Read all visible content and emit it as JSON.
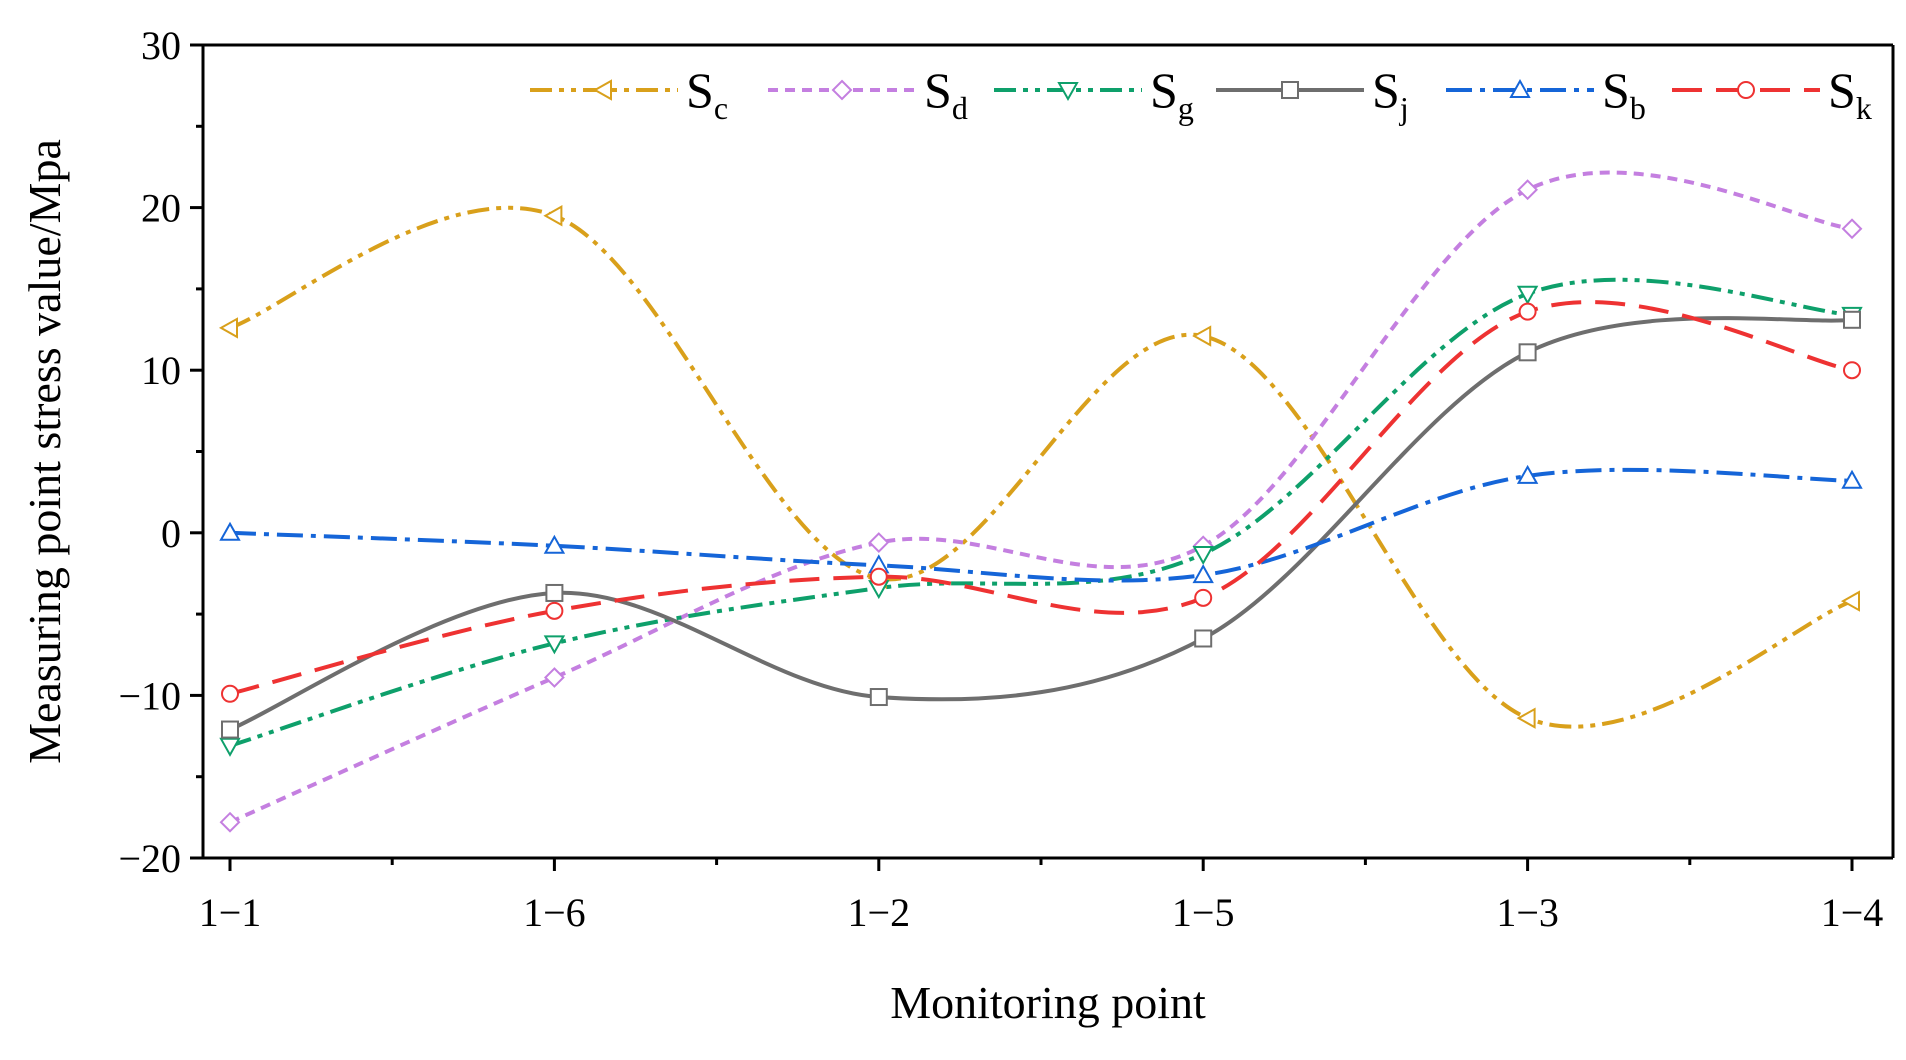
{
  "chart_data": {
    "type": "line",
    "xlabel": "Monitoring point",
    "ylabel": "Measuring point stress value/Mpa",
    "categories": [
      "1−1",
      "1−6",
      "1−2",
      "1−5",
      "1−3",
      "1−4"
    ],
    "ylim": [
      -20,
      30
    ],
    "yticks": [
      -20,
      -10,
      0,
      10,
      20,
      30
    ],
    "ytick_labels": [
      "−20",
      "−10",
      "0",
      "10",
      "20",
      "30"
    ],
    "grid": false,
    "legend_position": "top-right",
    "series": [
      {
        "name": "S",
        "sub": "c",
        "color": "#D9A01B",
        "marker": "triangle-left",
        "dash": "dashdotdot",
        "values": [
          12.6,
          19.5,
          -2.8,
          12.1,
          -11.4,
          -4.2
        ]
      },
      {
        "name": "S",
        "sub": "d",
        "color": "#C47FE0",
        "marker": "diamond",
        "dash": "dash-short",
        "values": [
          -17.8,
          -8.9,
          -0.6,
          -0.8,
          21.1,
          18.7
        ]
      },
      {
        "name": "S",
        "sub": "g",
        "color": "#0EA06B",
        "marker": "triangle-down",
        "dash": "dashdotdot",
        "values": [
          -13.1,
          -6.8,
          -3.4,
          -1.3,
          14.7,
          13.4
        ]
      },
      {
        "name": "S",
        "sub": "j",
        "color": "#6E6E6E",
        "marker": "square",
        "dash": "solid",
        "values": [
          -12.1,
          -3.7,
          -10.1,
          -6.5,
          11.1,
          13.1
        ]
      },
      {
        "name": "S",
        "sub": "b",
        "color": "#1565D8",
        "marker": "triangle-up",
        "dash": "dashdot",
        "values": [
          0.0,
          -0.8,
          -2.0,
          -2.6,
          3.5,
          3.2
        ]
      },
      {
        "name": "S",
        "sub": "k",
        "color": "#EE3232",
        "marker": "circle",
        "dash": "dash-long",
        "values": [
          -9.9,
          -4.8,
          -2.7,
          -4.0,
          13.6,
          10.0
        ]
      }
    ]
  }
}
